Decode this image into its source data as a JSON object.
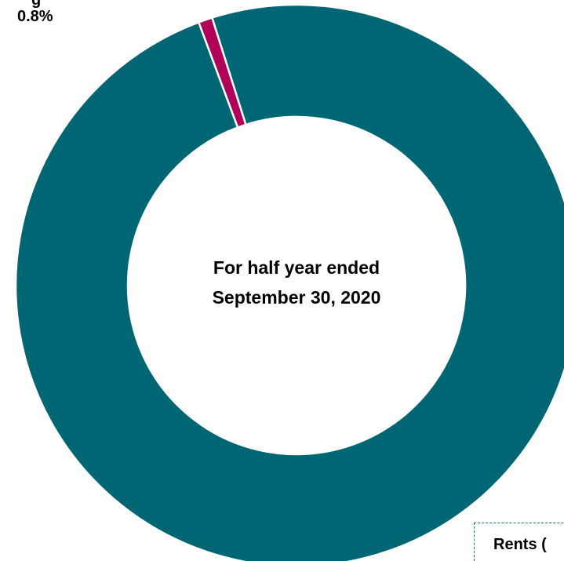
{
  "chart_data": {
    "type": "pie",
    "style": "donut",
    "title": "For half year ended September 30, 2020",
    "slices": [
      {
        "label": "Rents",
        "value": 99.2,
        "color": "#006674"
      },
      {
        "label": "",
        "value": 0.8,
        "color": "#B0005A",
        "value_label": "0.8%"
      }
    ]
  },
  "center": {
    "line1": "For half year ended",
    "line2": "September 30, 2020"
  },
  "labels": {
    "top_slice_name_partial": "g",
    "top_slice_pct": "0.8%",
    "callout_partial": "Rents ("
  }
}
